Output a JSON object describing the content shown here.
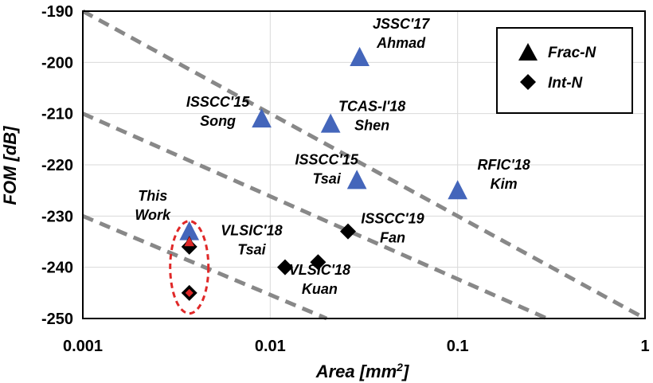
{
  "chart_data": {
    "type": "scatter",
    "xlabel_main": "Area [mm",
    "xlabel_sup": "2",
    "xlabel_end": "]",
    "ylabel": "FOM [dB]",
    "xscale": "log",
    "xlim": [
      0.001,
      1
    ],
    "ylim": [
      -250,
      -190
    ],
    "grid": true,
    "x_ticks": [
      {
        "value": 0.001,
        "label": "0.001"
      },
      {
        "value": 0.01,
        "label": "0.01"
      },
      {
        "value": 0.1,
        "label": "0.1"
      },
      {
        "value": 1,
        "label": "1"
      }
    ],
    "y_ticks": [
      {
        "value": -190,
        "label": "-190"
      },
      {
        "value": -200,
        "label": "-200"
      },
      {
        "value": -210,
        "label": "-210"
      },
      {
        "value": -220,
        "label": "-220"
      },
      {
        "value": -230,
        "label": "-230"
      },
      {
        "value": -240,
        "label": "-240"
      },
      {
        "value": -250,
        "label": "-250"
      }
    ],
    "legend": {
      "placement": "top-right",
      "entries": [
        {
          "label": "Frac-N",
          "marker": "triangle"
        },
        {
          "label": "Int-N",
          "marker": "diamond"
        }
      ]
    },
    "series": [
      {
        "name": "Frac-N",
        "marker": "triangle",
        "color": "#4466bb",
        "points": [
          {
            "x": 0.03,
            "y": -199,
            "label": [
              "JSSC'17",
              "Ahmad"
            ]
          },
          {
            "x": 0.009,
            "y": -211,
            "label": [
              "ISSCC'15",
              "Song"
            ]
          },
          {
            "x": 0.021,
            "y": -212,
            "label": [
              "TCAS-I'18",
              "Shen"
            ]
          },
          {
            "x": 0.029,
            "y": -223,
            "label": [
              "ISSCC'15",
              "Tsai"
            ]
          },
          {
            "x": 0.1,
            "y": -225,
            "label": [
              "RFIC'18",
              "Kim"
            ]
          },
          {
            "x": 0.0037,
            "y": -233,
            "label": []
          }
        ]
      },
      {
        "name": "Int-N",
        "marker": "diamond",
        "color": "#000000",
        "points": [
          {
            "x": 0.026,
            "y": -233,
            "label": [
              "ISSCC'19",
              "Fan"
            ]
          },
          {
            "x": 0.018,
            "y": -239,
            "label": [
              "VLSIC'18",
              "Kuan"
            ]
          },
          {
            "x": 0.012,
            "y": -240,
            "label": [
              "VLSIC'18",
              "Tsai"
            ]
          },
          {
            "x": 0.0037,
            "y": -236,
            "label": []
          }
        ]
      }
    ],
    "this_work": {
      "label": [
        "This",
        "Work"
      ],
      "color": "#e02828",
      "points": [
        {
          "x": 0.0037,
          "y": -235,
          "marker": "triangle"
        },
        {
          "x": 0.0037,
          "y": -245,
          "marker": "diamond"
        }
      ]
    },
    "reference_lines": [
      {
        "from": [
          0.001,
          -190
        ],
        "to": [
          1,
          -250
        ],
        "style": "dashed",
        "color": "#888888"
      },
      {
        "from": [
          0.001,
          -210
        ],
        "to": [
          0.3,
          -250
        ],
        "style": "dashed",
        "color": "#888888"
      },
      {
        "from": [
          0.001,
          -230
        ],
        "to": [
          0.02,
          -250
        ],
        "style": "dashed",
        "color": "#888888"
      }
    ]
  }
}
